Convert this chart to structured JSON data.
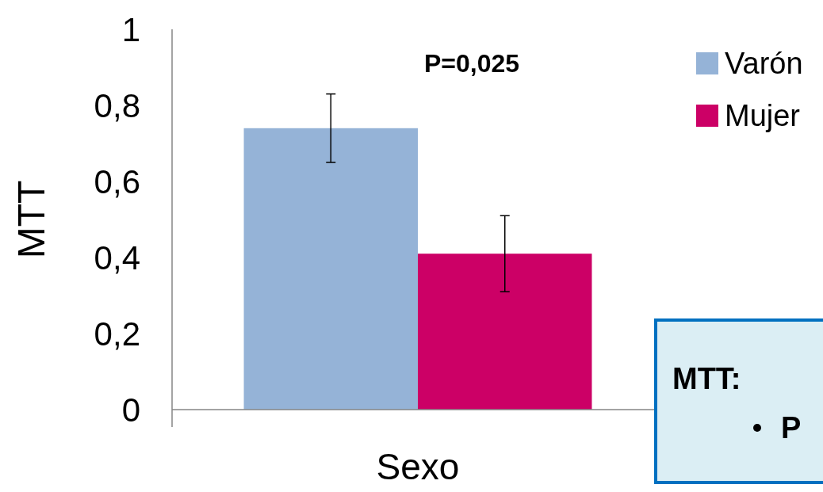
{
  "chart_data": {
    "type": "bar",
    "categories": [
      "Sexo"
    ],
    "ylabel": "MTT",
    "series": [
      {
        "name": "Varón",
        "color": "#95b3d7",
        "values": [
          0.74
        ],
        "errors": [
          0.09
        ]
      },
      {
        "name": "Mujer",
        "color": "#cc0066",
        "values": [
          0.41
        ],
        "errors": [
          0.1
        ]
      }
    ],
    "ylim": [
      0,
      1
    ],
    "yticks": [
      {
        "value": 0,
        "label": "0"
      },
      {
        "value": 0.2,
        "label": "0,2"
      },
      {
        "value": 0.4,
        "label": "0,4"
      },
      {
        "value": 0.6,
        "label": "0,6"
      },
      {
        "value": 0.8,
        "label": "0,8"
      },
      {
        "value": 1,
        "label": "1"
      }
    ],
    "grid": false,
    "legend": "top right",
    "annotations": [
      "P=0,025",
      "MTT:",
      "P"
    ]
  }
}
